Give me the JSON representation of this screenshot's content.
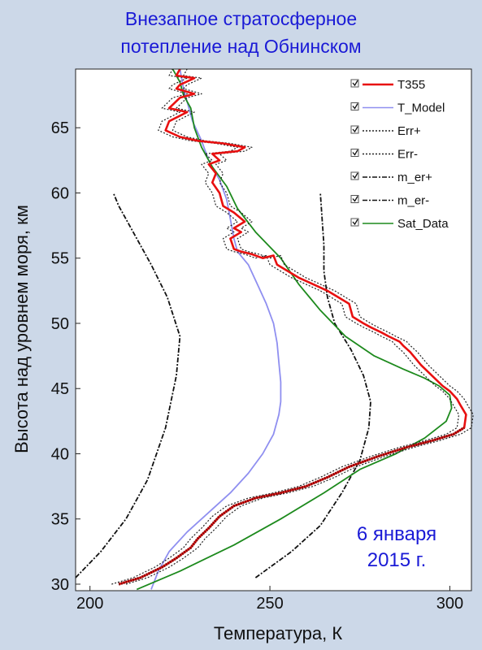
{
  "chart_data": {
    "type": "line",
    "title": "Внезапное стратосферное",
    "subtitle": "потепление над Обнинском",
    "xlabel": "Температура, К",
    "ylabel": "Высота над уровнем моря, км",
    "xlim": [
      196,
      306
    ],
    "ylim": [
      29.5,
      69.5
    ],
    "xticks": [
      200,
      250,
      300
    ],
    "yticks": [
      30,
      35,
      40,
      45,
      50,
      55,
      60,
      65
    ],
    "legend_position": "top-right",
    "annotation": [
      "6 января",
      "2015 г."
    ],
    "series": [
      {
        "name": "T355",
        "color": "#e81010",
        "points": [
          [
            208,
            30
          ],
          [
            214,
            30.5
          ],
          [
            220,
            31.3
          ],
          [
            224,
            32
          ],
          [
            228,
            32.8
          ],
          [
            230,
            33.5
          ],
          [
            233,
            34.3
          ],
          [
            236,
            35.2
          ],
          [
            240,
            36
          ],
          [
            246,
            36.6
          ],
          [
            253,
            37
          ],
          [
            260,
            37.5
          ],
          [
            266,
            38.2
          ],
          [
            272,
            39
          ],
          [
            280,
            39.8
          ],
          [
            288,
            40.5
          ],
          [
            295,
            41
          ],
          [
            301,
            41.5
          ],
          [
            304,
            42
          ],
          [
            304.5,
            43
          ],
          [
            303,
            43.7
          ],
          [
            302,
            44.2
          ],
          [
            300,
            44.8
          ],
          [
            298,
            45.2
          ],
          [
            295,
            46
          ],
          [
            292,
            46.8
          ],
          [
            289,
            47.8
          ],
          [
            287,
            48.3
          ],
          [
            286,
            48.6
          ],
          [
            283,
            49
          ],
          [
            281,
            49.3
          ],
          [
            278,
            49.7
          ],
          [
            276,
            50
          ],
          [
            273,
            50.5
          ],
          [
            272,
            51.5
          ],
          [
            269,
            52
          ],
          [
            266,
            52.5
          ],
          [
            262,
            53
          ],
          [
            258,
            53.5
          ],
          [
            255,
            54
          ],
          [
            252,
            54.5
          ],
          [
            251,
            55.2
          ],
          [
            248,
            55
          ],
          [
            245,
            55.3
          ],
          [
            242,
            55.5
          ],
          [
            240,
            55.7
          ],
          [
            239,
            56.5
          ],
          [
            242,
            57
          ],
          [
            240,
            57.3
          ],
          [
            243,
            57.8
          ],
          [
            240,
            58.5
          ],
          [
            237,
            59
          ],
          [
            236,
            60
          ],
          [
            234,
            60.8
          ],
          [
            235,
            61.5
          ],
          [
            233,
            62.2
          ],
          [
            236,
            62.5
          ],
          [
            234,
            63
          ],
          [
            241,
            63.2
          ],
          [
            243,
            63.5
          ],
          [
            237,
            63.8
          ],
          [
            230,
            64
          ],
          [
            225,
            64.3
          ],
          [
            221,
            64.8
          ],
          [
            222,
            65.5
          ],
          [
            227,
            66.2
          ],
          [
            222,
            66.5
          ],
          [
            225,
            67.3
          ],
          [
            229,
            67.6
          ],
          [
            224,
            68
          ],
          [
            225,
            68.3
          ],
          [
            229,
            68.8
          ],
          [
            224,
            69
          ],
          [
            225,
            69.5
          ]
        ]
      },
      {
        "name": "T_Model",
        "color": "#8f8ff0",
        "points": [
          [
            217,
            29.6
          ],
          [
            219,
            31
          ],
          [
            222,
            32.5
          ],
          [
            227,
            34
          ],
          [
            233,
            35.5
          ],
          [
            239,
            37
          ],
          [
            244,
            38.5
          ],
          [
            248,
            40
          ],
          [
            251,
            41.5
          ],
          [
            252.5,
            43
          ],
          [
            253,
            44
          ],
          [
            253,
            45.5
          ],
          [
            252.5,
            47
          ],
          [
            252,
            48.5
          ],
          [
            251,
            50
          ],
          [
            249,
            51.5
          ],
          [
            246.5,
            53
          ],
          [
            244,
            54.5
          ],
          [
            241,
            55.5
          ],
          [
            240,
            56.5
          ],
          [
            239,
            58
          ],
          [
            238,
            59.5
          ],
          [
            236,
            61
          ],
          [
            233,
            62.5
          ],
          [
            231,
            64
          ],
          [
            228.5,
            65.5
          ],
          [
            227,
            67
          ],
          [
            226,
            68
          ],
          [
            225,
            69.5
          ]
        ]
      },
      {
        "name": "Err+",
        "color": "#222222",
        "dash": "2,2",
        "offset": 2
      },
      {
        "name": "Err-",
        "color": "#222222",
        "dash": "2,2",
        "offset": -2
      },
      {
        "name": "m_er+",
        "color": "#111111",
        "dash": "6,2,2,2",
        "points": [
          [
            246,
            30.5
          ],
          [
            256,
            32.5
          ],
          [
            264,
            34.5
          ],
          [
            270,
            37
          ],
          [
            275,
            39.5
          ],
          [
            277.5,
            42
          ],
          [
            278,
            44
          ],
          [
            276,
            46
          ],
          [
            272.5,
            48
          ],
          [
            268,
            50
          ],
          [
            266,
            52
          ],
          [
            265,
            54
          ],
          [
            265,
            56
          ],
          [
            264.5,
            58
          ],
          [
            264,
            60
          ]
        ]
      },
      {
        "name": "m_er-",
        "color": "#111111",
        "dash": "6,2,2,2",
        "points": [
          [
            196,
            30.5
          ],
          [
            203,
            32.5
          ],
          [
            210,
            35
          ],
          [
            216,
            38
          ],
          [
            221,
            42
          ],
          [
            224,
            46
          ],
          [
            225,
            49
          ],
          [
            221.5,
            52
          ],
          [
            217,
            54.5
          ],
          [
            212,
            57
          ],
          [
            208,
            59
          ],
          [
            206.5,
            60
          ]
        ]
      },
      {
        "name": "Sat_Data",
        "color": "#1d8a1d",
        "points": [
          [
            213,
            29.6
          ],
          [
            225,
            31
          ],
          [
            240,
            33
          ],
          [
            253,
            35
          ],
          [
            265,
            37
          ],
          [
            275,
            38.8
          ],
          [
            285,
            40
          ],
          [
            293,
            41.2
          ],
          [
            299,
            42.5
          ],
          [
            300.5,
            43.5
          ],
          [
            300,
            44.5
          ],
          [
            297,
            45.2
          ],
          [
            293,
            45.8
          ],
          [
            287,
            46.5
          ],
          [
            279,
            47.5
          ],
          [
            271,
            49
          ],
          [
            264,
            51
          ],
          [
            258,
            53
          ],
          [
            253,
            55
          ],
          [
            246,
            57
          ],
          [
            241,
            58.8
          ],
          [
            238,
            60.5
          ],
          [
            234,
            62
          ],
          [
            231,
            63.5
          ],
          [
            229,
            65
          ],
          [
            228,
            66.5
          ],
          [
            226,
            67.5
          ],
          [
            225,
            68.5
          ],
          [
            223,
            69.5
          ]
        ]
      }
    ]
  }
}
